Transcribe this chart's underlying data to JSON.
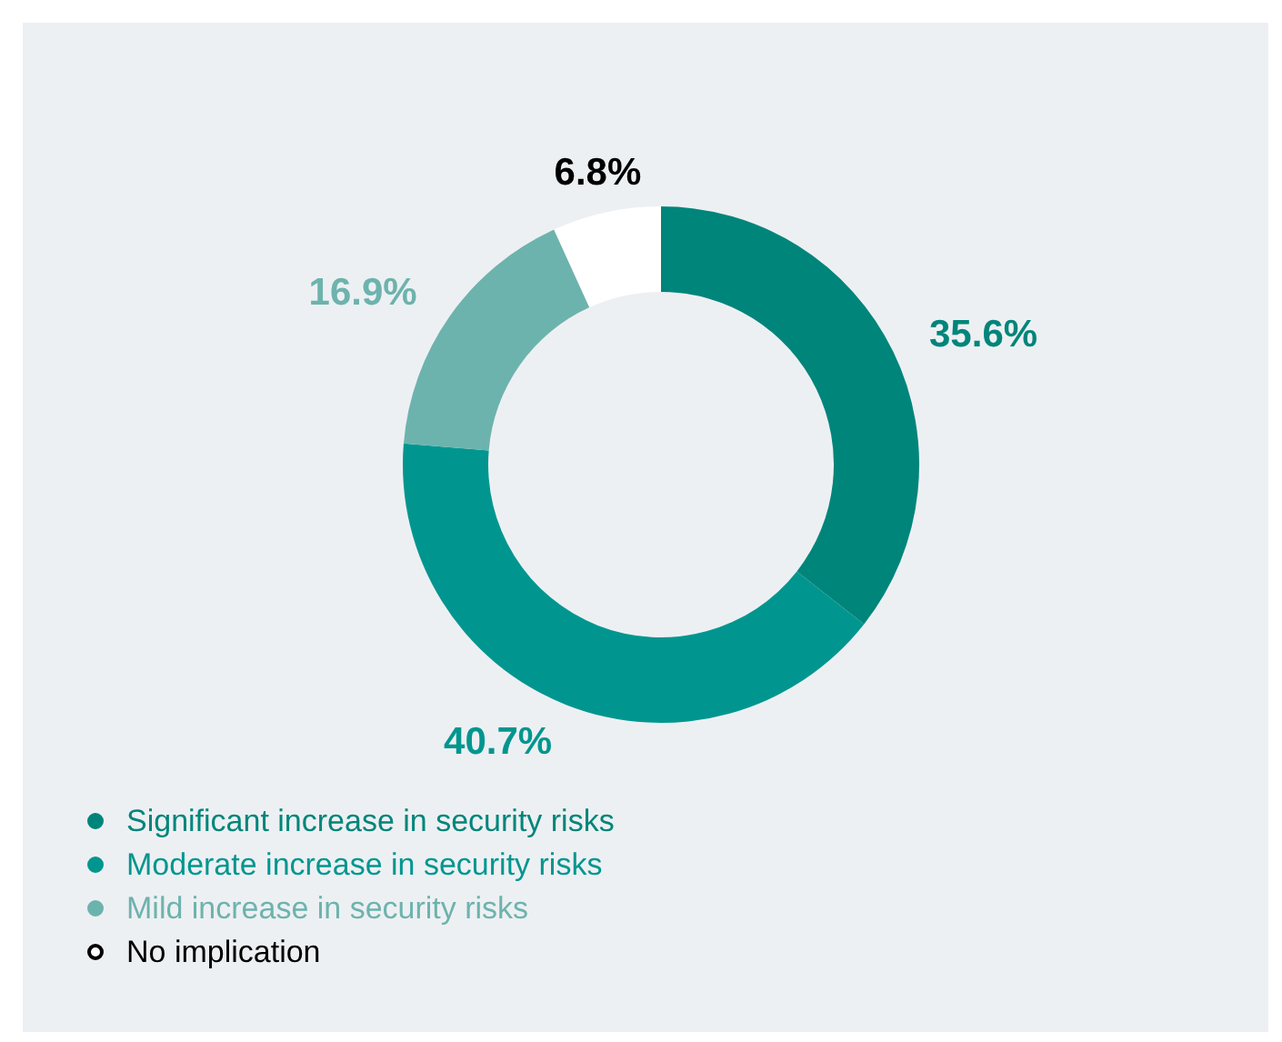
{
  "chart_data": {
    "type": "donut",
    "categories": [
      "Significant increase in security risks",
      "Moderate increase in security risks",
      "Mild increase in security risks",
      "No implication"
    ],
    "values": [
      35.6,
      40.7,
      16.9,
      6.8
    ],
    "colors": [
      "#00857a",
      "#00968f",
      "#6db3ad",
      "#ffffff"
    ],
    "value_labels": [
      "35.6%",
      "40.7%",
      "16.9%",
      "6.8%"
    ],
    "legend": "bottom left"
  }
}
